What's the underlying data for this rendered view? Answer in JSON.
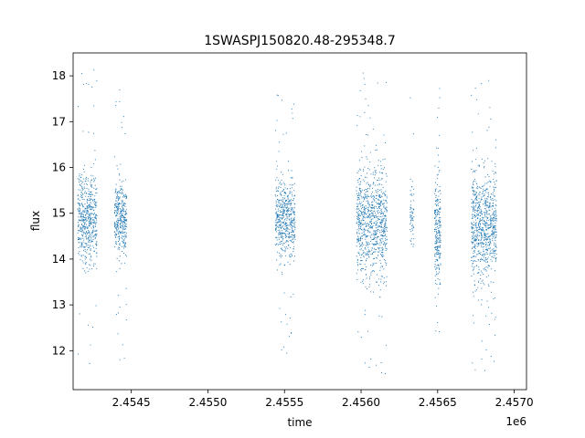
{
  "chart_data": {
    "type": "scatter",
    "title": "1SWASPJ150820.48-295348.7",
    "xlabel": "time",
    "ylabel": "flux",
    "x_offset_label": "1e6",
    "xlim": [
      2454120,
      2457080
    ],
    "ylim": [
      11.15,
      18.5
    ],
    "x_ticks": [
      {
        "value": 2454500,
        "label": "2.4545"
      },
      {
        "value": 2455000,
        "label": "2.4550"
      },
      {
        "value": 2455500,
        "label": "2.4555"
      },
      {
        "value": 2456000,
        "label": "2.4560"
      },
      {
        "value": 2456500,
        "label": "2.4565"
      },
      {
        "value": 2457000,
        "label": "2.4570"
      }
    ],
    "y_ticks": [
      {
        "value": 12,
        "label": "12"
      },
      {
        "value": 13,
        "label": "13"
      },
      {
        "value": 14,
        "label": "14"
      },
      {
        "value": 15,
        "label": "15"
      },
      {
        "value": 16,
        "label": "16"
      },
      {
        "value": 17,
        "label": "17"
      },
      {
        "value": 18,
        "label": "18"
      }
    ],
    "grid": false,
    "legend": "none",
    "marker_color": "#1f77b4",
    "clusters": [
      {
        "x_range": [
          2454150,
          2454275
        ],
        "center": 14.9,
        "spread": 0.85,
        "y_min": 11.55,
        "y_max": 18.15,
        "count": 560
      },
      {
        "x_range": [
          2454390,
          2454470
        ],
        "center": 14.9,
        "spread": 0.65,
        "y_min": 11.6,
        "y_max": 17.8,
        "count": 380
      },
      {
        "x_range": [
          2455440,
          2455570
        ],
        "center": 14.85,
        "spread": 0.8,
        "y_min": 11.5,
        "y_max": 17.75,
        "count": 560
      },
      {
        "x_range": [
          2455970,
          2456170
        ],
        "center": 14.8,
        "spread": 1.05,
        "y_min": 11.5,
        "y_max": 18.2,
        "count": 900
      },
      {
        "x_range": [
          2456320,
          2456345
        ],
        "center": 14.9,
        "spread": 0.6,
        "y_min": 12.8,
        "y_max": 18.0,
        "count": 60
      },
      {
        "x_range": [
          2456480,
          2456520
        ],
        "center": 14.6,
        "spread": 1.0,
        "y_min": 11.5,
        "y_max": 18.0,
        "count": 260
      },
      {
        "x_range": [
          2456720,
          2456885
        ],
        "center": 14.75,
        "spread": 1.05,
        "y_min": 11.5,
        "y_max": 18.15,
        "count": 820
      }
    ]
  }
}
